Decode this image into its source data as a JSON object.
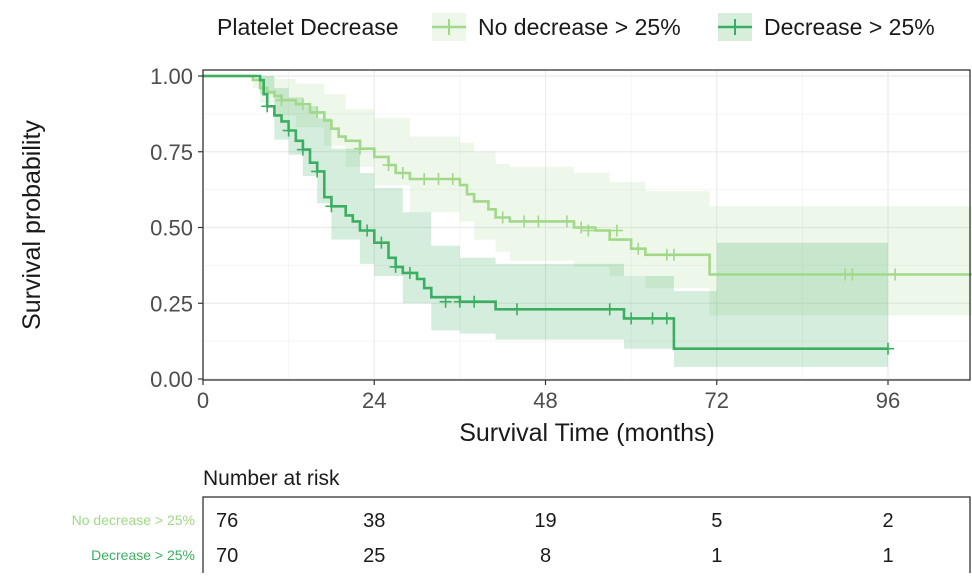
{
  "colors": {
    "no_decrease": "#a1d889",
    "decrease": "#3cae62",
    "panel_border": "#333333",
    "grid_major": "#ebebeb",
    "grid_minor": "#f5f5f5"
  },
  "legend": {
    "title": "Platelet Decrease",
    "items": [
      "No decrease > 25%",
      "Decrease > 25%"
    ],
    "position": "top"
  },
  "chart_data": {
    "type": "line",
    "subtype": "kaplan-meier step curve with confidence bands and censor marks",
    "xlabel": "Survival Time (months)",
    "ylabel": "Survival probability",
    "xlim": [
      0,
      108
    ],
    "ylim": [
      0,
      1
    ],
    "xticks": [
      0,
      24,
      48,
      72,
      96
    ],
    "xtick_labels": [
      "0",
      "24",
      "48",
      "72",
      "96"
    ],
    "yticks": [
      0,
      0.25,
      0.5,
      0.75,
      1
    ],
    "ytick_labels": [
      "0.00",
      "0.25",
      "0.50",
      "0.75",
      "1.00"
    ],
    "grid": true,
    "series": [
      {
        "name": "No decrease > 25%",
        "steps": [
          [
            0,
            1.0
          ],
          [
            7,
            0.987
          ],
          [
            8,
            0.96
          ],
          [
            9,
            0.947
          ],
          [
            10,
            0.934
          ],
          [
            11,
            0.92
          ],
          [
            13,
            0.907
          ],
          [
            15,
            0.88
          ],
          [
            17,
            0.853
          ],
          [
            18,
            0.826
          ],
          [
            19,
            0.8
          ],
          [
            20,
            0.786
          ],
          [
            22,
            0.76
          ],
          [
            24,
            0.733
          ],
          [
            26,
            0.706
          ],
          [
            27,
            0.68
          ],
          [
            29,
            0.66
          ],
          [
            36,
            0.64
          ],
          [
            37,
            0.61
          ],
          [
            38,
            0.586
          ],
          [
            40,
            0.56
          ],
          [
            41,
            0.533
          ],
          [
            43,
            0.52
          ],
          [
            52,
            0.5
          ],
          [
            55,
            0.49
          ],
          [
            57,
            0.46
          ],
          [
            60,
            0.43
          ],
          [
            62,
            0.41
          ],
          [
            71,
            0.345
          ],
          [
            108,
            0.345
          ]
        ],
        "censor": [
          [
            11,
            0.92
          ],
          [
            14,
            0.907
          ],
          [
            16,
            0.88
          ],
          [
            22,
            0.76
          ],
          [
            26,
            0.706
          ],
          [
            28,
            0.68
          ],
          [
            31,
            0.66
          ],
          [
            33,
            0.66
          ],
          [
            35,
            0.66
          ],
          [
            42,
            0.533
          ],
          [
            45,
            0.52
          ],
          [
            47,
            0.52
          ],
          [
            51,
            0.52
          ],
          [
            53,
            0.5
          ],
          [
            54,
            0.49
          ],
          [
            58,
            0.49
          ],
          [
            61,
            0.43
          ],
          [
            65,
            0.41
          ],
          [
            66,
            0.41
          ],
          [
            90,
            0.345
          ],
          [
            91,
            0.345
          ],
          [
            97,
            0.345
          ]
        ],
        "ci_upper": [
          [
            0,
            1.0
          ],
          [
            7,
            1.0
          ],
          [
            8,
            1.0
          ],
          [
            10,
            0.99
          ],
          [
            13,
            0.975
          ],
          [
            17,
            0.94
          ],
          [
            20,
            0.89
          ],
          [
            24,
            0.86
          ],
          [
            29,
            0.8
          ],
          [
            36,
            0.78
          ],
          [
            38,
            0.75
          ],
          [
            41,
            0.71
          ],
          [
            43,
            0.7
          ],
          [
            52,
            0.68
          ],
          [
            57,
            0.65
          ],
          [
            62,
            0.62
          ],
          [
            71,
            0.57
          ],
          [
            108,
            0.57
          ]
        ],
        "ci_lower": [
          [
            0,
            1.0
          ],
          [
            7,
            0.96
          ],
          [
            8,
            0.91
          ],
          [
            10,
            0.87
          ],
          [
            13,
            0.83
          ],
          [
            17,
            0.77
          ],
          [
            20,
            0.7
          ],
          [
            24,
            0.64
          ],
          [
            29,
            0.55
          ],
          [
            36,
            0.52
          ],
          [
            38,
            0.46
          ],
          [
            41,
            0.42
          ],
          [
            43,
            0.39
          ],
          [
            52,
            0.37
          ],
          [
            57,
            0.34
          ],
          [
            62,
            0.3
          ],
          [
            71,
            0.21
          ],
          [
            108,
            0.21
          ]
        ]
      },
      {
        "name": "Decrease > 25%",
        "steps": [
          [
            0,
            1.0
          ],
          [
            8,
            0.986
          ],
          [
            8.5,
            0.94
          ],
          [
            9,
            0.9
          ],
          [
            10,
            0.87
          ],
          [
            11,
            0.85
          ],
          [
            12,
            0.82
          ],
          [
            13,
            0.786
          ],
          [
            14,
            0.757
          ],
          [
            15,
            0.714
          ],
          [
            16,
            0.685
          ],
          [
            17,
            0.6
          ],
          [
            18,
            0.57
          ],
          [
            20,
            0.54
          ],
          [
            21,
            0.52
          ],
          [
            22,
            0.49
          ],
          [
            24,
            0.45
          ],
          [
            26,
            0.4
          ],
          [
            27,
            0.37
          ],
          [
            28,
            0.35
          ],
          [
            30,
            0.33
          ],
          [
            31,
            0.3
          ],
          [
            32,
            0.27
          ],
          [
            36,
            0.255
          ],
          [
            41,
            0.23
          ],
          [
            59,
            0.2
          ],
          [
            66,
            0.1
          ],
          [
            96,
            0.1
          ]
        ],
        "censor": [
          [
            9,
            0.9
          ],
          [
            12,
            0.82
          ],
          [
            14,
            0.757
          ],
          [
            16,
            0.685
          ],
          [
            18,
            0.57
          ],
          [
            23,
            0.49
          ],
          [
            25,
            0.45
          ],
          [
            27,
            0.37
          ],
          [
            29,
            0.35
          ],
          [
            34,
            0.255
          ],
          [
            36,
            0.255
          ],
          [
            38,
            0.255
          ],
          [
            44,
            0.23
          ],
          [
            57,
            0.23
          ],
          [
            60,
            0.2
          ],
          [
            63,
            0.2
          ],
          [
            65,
            0.2
          ],
          [
            96,
            0.1
          ]
        ],
        "ci_upper": [
          [
            0,
            1.0
          ],
          [
            8,
            1.0
          ],
          [
            10,
            0.96
          ],
          [
            12,
            0.93
          ],
          [
            14,
            0.9
          ],
          [
            16,
            0.86
          ],
          [
            18,
            0.76
          ],
          [
            22,
            0.68
          ],
          [
            24,
            0.63
          ],
          [
            28,
            0.55
          ],
          [
            32,
            0.44
          ],
          [
            36,
            0.4
          ],
          [
            41,
            0.38
          ],
          [
            59,
            0.34
          ],
          [
            66,
            0.29
          ],
          [
            72,
            0.45
          ],
          [
            96,
            0.45
          ]
        ],
        "ci_lower": [
          [
            0,
            1.0
          ],
          [
            8,
            0.94
          ],
          [
            10,
            0.79
          ],
          [
            12,
            0.74
          ],
          [
            14,
            0.67
          ],
          [
            16,
            0.58
          ],
          [
            18,
            0.46
          ],
          [
            22,
            0.38
          ],
          [
            24,
            0.34
          ],
          [
            28,
            0.25
          ],
          [
            32,
            0.16
          ],
          [
            36,
            0.15
          ],
          [
            41,
            0.13
          ],
          [
            59,
            0.1
          ],
          [
            66,
            0.04
          ],
          [
            96,
            0.04
          ]
        ]
      }
    ]
  },
  "risk_table": {
    "title": "Number at risk",
    "times": [
      0,
      24,
      48,
      72,
      96
    ],
    "rows": [
      {
        "label": "No decrease > 25%",
        "values": [
          "76",
          "38",
          "19",
          "5",
          "2"
        ]
      },
      {
        "label": "Decrease > 25%",
        "values": [
          "70",
          "25",
          "8",
          "1",
          "1"
        ]
      }
    ]
  }
}
